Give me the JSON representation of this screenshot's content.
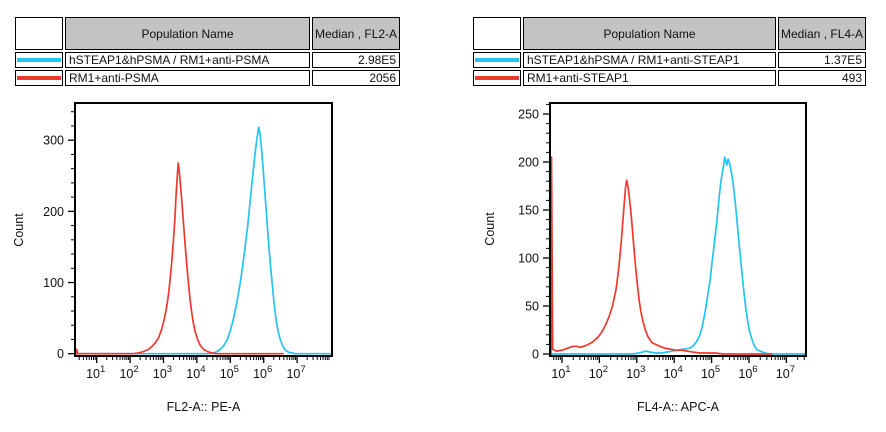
{
  "accent_colors": {
    "series_cyan": "#23c4ef",
    "series_red": "#ef382e",
    "table_header_gray": "#c3c3c3"
  },
  "panels": [
    {
      "id": "FL2",
      "table": {
        "columns": {
          "population": "Population Name",
          "median": "Median , FL2-A"
        },
        "rows": [
          {
            "swatch_color": "#23c4ef",
            "name": "hSTEAP1&hPSMA / RM1+anti-PSMA",
            "median": "2.98E5"
          },
          {
            "swatch_color": "#ef382e",
            "name": "RM1+anti-PSMA",
            "median": "2056"
          }
        ]
      },
      "chart_data": {
        "type": "line",
        "subtype": "flow-cytometry-histogram",
        "xlabel": "FL2-A:: PE-A",
        "ylabel": "Count",
        "x_scale": "log10",
        "x_tick_exponents": [
          1,
          2,
          3,
          4,
          5,
          6,
          7
        ],
        "x_axis_range_log10": [
          0.38,
          8.0
        ],
        "y_ticks": [
          0,
          100,
          200,
          300
        ],
        "y_minor_step": 20,
        "ylim": [
          0,
          352
        ],
        "grid": false,
        "legend": "none",
        "series": [
          {
            "name": "hSTEAP1&hPSMA / RM1+anti-PSMA",
            "color": "#23c4ef",
            "median": "2.98E5",
            "peak_count": 318,
            "peak_log10x": 5.85,
            "points": [
              [
                0.38,
                0
              ],
              [
                4.35,
                0
              ],
              [
                4.5,
                1
              ],
              [
                4.6,
                3
              ],
              [
                4.7,
                6
              ],
              [
                4.8,
                11
              ],
              [
                4.9,
                19
              ],
              [
                5.0,
                32
              ],
              [
                5.1,
                50
              ],
              [
                5.2,
                73
              ],
              [
                5.3,
                100
              ],
              [
                5.38,
                127
              ],
              [
                5.45,
                152
              ],
              [
                5.52,
                180
              ],
              [
                5.58,
                208
              ],
              [
                5.64,
                236
              ],
              [
                5.7,
                263
              ],
              [
                5.75,
                285
              ],
              [
                5.8,
                303
              ],
              [
                5.85,
                318
              ],
              [
                5.89,
                309
              ],
              [
                5.93,
                290
              ],
              [
                5.98,
                262
              ],
              [
                6.03,
                230
              ],
              [
                6.08,
                198
              ],
              [
                6.13,
                167
              ],
              [
                6.18,
                137
              ],
              [
                6.23,
                110
              ],
              [
                6.28,
                85
              ],
              [
                6.33,
                63
              ],
              [
                6.38,
                45
              ],
              [
                6.44,
                30
              ],
              [
                6.5,
                19
              ],
              [
                6.57,
                11
              ],
              [
                6.65,
                5
              ],
              [
                6.75,
                2
              ],
              [
                6.85,
                1
              ],
              [
                6.95,
                0
              ],
              [
                8.0,
                0
              ]
            ]
          },
          {
            "name": "RM1+anti-PSMA",
            "color": "#ef382e",
            "median": "2056",
            "peak_count": 268,
            "peak_log10x": 3.44,
            "points": [
              [
                0.38,
                0
              ],
              [
                0.4,
                6
              ],
              [
                0.43,
                0
              ],
              [
                2.1,
                0
              ],
              [
                2.25,
                1
              ],
              [
                2.4,
                3
              ],
              [
                2.55,
                6
              ],
              [
                2.65,
                10
              ],
              [
                2.75,
                15
              ],
              [
                2.85,
                22
              ],
              [
                2.95,
                35
              ],
              [
                3.02,
                48
              ],
              [
                3.08,
                62
              ],
              [
                3.14,
                80
              ],
              [
                3.19,
                100
              ],
              [
                3.24,
                125
              ],
              [
                3.29,
                155
              ],
              [
                3.34,
                190
              ],
              [
                3.38,
                225
              ],
              [
                3.41,
                248
              ],
              [
                3.44,
                268
              ],
              [
                3.47,
                257
              ],
              [
                3.51,
                237
              ],
              [
                3.55,
                213
              ],
              [
                3.6,
                183
              ],
              [
                3.65,
                152
              ],
              [
                3.7,
                123
              ],
              [
                3.75,
                97
              ],
              [
                3.8,
                74
              ],
              [
                3.85,
                56
              ],
              [
                3.9,
                41
              ],
              [
                3.96,
                29
              ],
              [
                4.02,
                20
              ],
              [
                4.1,
                12
              ],
              [
                4.2,
                6
              ],
              [
                4.32,
                3
              ],
              [
                4.45,
                1
              ],
              [
                4.6,
                0
              ],
              [
                6.58,
                0
              ]
            ]
          }
        ]
      }
    },
    {
      "id": "FL4",
      "table": {
        "columns": {
          "population": "Population Name",
          "median": "Median , FL4-A"
        },
        "rows": [
          {
            "swatch_color": "#23c4ef",
            "name": "hSTEAP1&hPSMA / RM1+anti-STEAP1",
            "median": "1.37E5"
          },
          {
            "swatch_color": "#ef382e",
            "name": "RM1+anti-STEAP1",
            "median": "493"
          }
        ]
      },
      "chart_data": {
        "type": "line",
        "subtype": "flow-cytometry-histogram",
        "xlabel": "FL4-A:: APC-A",
        "ylabel": "Count",
        "x_scale": "log10",
        "x_tick_exponents": [
          1,
          2,
          3,
          4,
          5,
          6,
          7
        ],
        "x_axis_range_log10": [
          0.71,
          7.5
        ],
        "y_ticks": [
          0,
          50,
          100,
          150,
          200,
          250
        ],
        "y_minor_step": 10,
        "ylim": [
          0,
          261
        ],
        "grid": false,
        "legend": "none",
        "series": [
          {
            "name": "hSTEAP1&hPSMA / RM1+anti-STEAP1",
            "color": "#23c4ef",
            "median": "1.37E5",
            "peak_count": 205,
            "peak_log10x": 5.35,
            "points": [
              [
                0.71,
                0
              ],
              [
                2.9,
                0
              ],
              [
                3.05,
                1
              ],
              [
                3.15,
                2
              ],
              [
                3.25,
                3
              ],
              [
                3.35,
                2
              ],
              [
                3.5,
                1
              ],
              [
                3.65,
                1
              ],
              [
                3.8,
                2
              ],
              [
                3.95,
                3
              ],
              [
                4.1,
                4
              ],
              [
                4.25,
                5
              ],
              [
                4.4,
                6
              ],
              [
                4.5,
                8
              ],
              [
                4.6,
                13
              ],
              [
                4.68,
                19
              ],
              [
                4.74,
                27
              ],
              [
                4.8,
                38
              ],
              [
                4.86,
                52
              ],
              [
                4.92,
                67
              ],
              [
                4.97,
                80
              ],
              [
                5.01,
                95
              ],
              [
                5.05,
                108
              ],
              [
                5.08,
                118
              ],
              [
                5.12,
                131
              ],
              [
                5.16,
                146
              ],
              [
                5.2,
                163
              ],
              [
                5.24,
                177
              ],
              [
                5.28,
                188
              ],
              [
                5.32,
                196
              ],
              [
                5.35,
                205
              ],
              [
                5.38,
                201
              ],
              [
                5.41,
                197
              ],
              [
                5.44,
                203
              ],
              [
                5.47,
                200
              ],
              [
                5.5,
                195
              ],
              [
                5.54,
                187
              ],
              [
                5.58,
                176
              ],
              [
                5.62,
                162
              ],
              [
                5.66,
                147
              ],
              [
                5.7,
                129
              ],
              [
                5.74,
                113
              ],
              [
                5.78,
                97
              ],
              [
                5.82,
                81
              ],
              [
                5.87,
                63
              ],
              [
                5.92,
                46
              ],
              [
                5.97,
                33
              ],
              [
                6.02,
                23
              ],
              [
                6.08,
                15
              ],
              [
                6.14,
                9
              ],
              [
                6.2,
                5
              ],
              [
                6.3,
                3
              ],
              [
                6.42,
                1
              ],
              [
                6.55,
                0
              ],
              [
                7.5,
                0
              ]
            ]
          },
          {
            "name": "RM1+anti-STEAP1",
            "color": "#ef382e",
            "median": "493",
            "peak_count": 181,
            "peak_log10x": 2.73,
            "points": [
              [
                0.706,
                0
              ],
              [
                0.72,
                205
              ],
              [
                0.75,
                5
              ],
              [
                0.85,
                3
              ],
              [
                1.0,
                4
              ],
              [
                1.15,
                6
              ],
              [
                1.3,
                8
              ],
              [
                1.4,
                8
              ],
              [
                1.5,
                7
              ],
              [
                1.65,
                9
              ],
              [
                1.8,
                12
              ],
              [
                1.95,
                17
              ],
              [
                2.05,
                22
              ],
              [
                2.15,
                29
              ],
              [
                2.25,
                38
              ],
              [
                2.35,
                50
              ],
              [
                2.45,
                68
              ],
              [
                2.52,
                90
              ],
              [
                2.58,
                115
              ],
              [
                2.63,
                140
              ],
              [
                2.67,
                160
              ],
              [
                2.7,
                174
              ],
              [
                2.73,
                181
              ],
              [
                2.77,
                173
              ],
              [
                2.81,
                160
              ],
              [
                2.86,
                140
              ],
              [
                2.91,
                117
              ],
              [
                2.96,
                94
              ],
              [
                3.01,
                74
              ],
              [
                3.06,
                57
              ],
              [
                3.11,
                44
              ],
              [
                3.17,
                33
              ],
              [
                3.23,
                25
              ],
              [
                3.3,
                18
              ],
              [
                3.4,
                12
              ],
              [
                3.5,
                10
              ],
              [
                3.62,
                8
              ],
              [
                3.75,
                6
              ],
              [
                3.9,
                5
              ],
              [
                4.05,
                4
              ],
              [
                4.2,
                4
              ],
              [
                4.35,
                3
              ],
              [
                4.5,
                2
              ],
              [
                4.7,
                1
              ],
              [
                4.9,
                1
              ],
              [
                5.1,
                1
              ],
              [
                5.3,
                0
              ],
              [
                6.6,
                0
              ]
            ]
          }
        ]
      }
    }
  ]
}
